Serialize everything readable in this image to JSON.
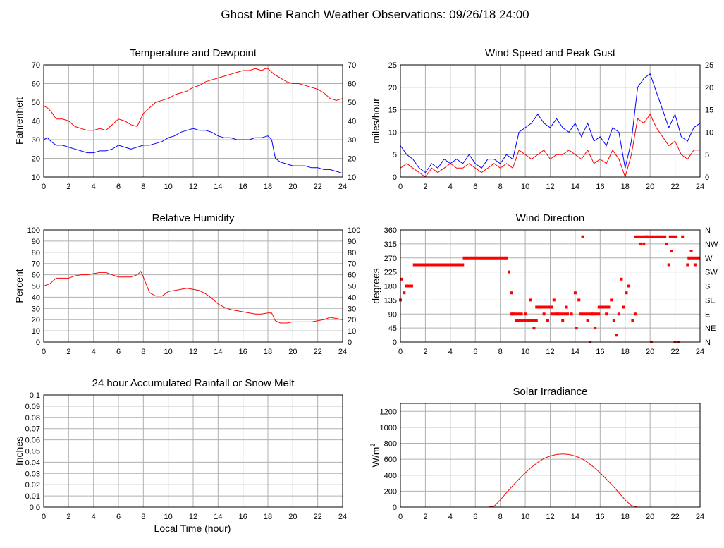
{
  "page": {
    "title": "Ghost Mine Ranch Weather Observations: 09/26/18 24:00",
    "x_axis_label": "Local Time (hour)"
  },
  "colors": {
    "red": "#ff0000",
    "blue": "#0000ff",
    "grid": "#b0b0b0"
  },
  "chart_data": [
    {
      "id": "temp",
      "type": "line",
      "title": "Temperature and Dewpoint",
      "xlabel": "",
      "ylabel": "Fahrenheit",
      "xlim": [
        0,
        24
      ],
      "ylim": [
        10,
        70
      ],
      "xticks": [
        0,
        2,
        4,
        6,
        8,
        10,
        12,
        14,
        16,
        18,
        20,
        22,
        24
      ],
      "yticks": [
        10,
        20,
        30,
        40,
        50,
        60,
        70
      ],
      "right_axis_ticks": [
        10,
        20,
        30,
        40,
        50,
        60,
        70
      ],
      "grid": true,
      "series": [
        {
          "color": "#ff0000",
          "x": [
            0,
            0.3,
            0.6,
            1,
            1.5,
            2,
            2.5,
            3,
            3.5,
            4,
            4.5,
            5,
            5.5,
            6,
            6.5,
            7,
            7.5,
            8,
            8.5,
            9,
            9.5,
            10,
            10.5,
            11,
            11.5,
            12,
            12.5,
            13,
            13.5,
            14,
            14.5,
            15,
            15.5,
            16,
            16.5,
            17,
            17.5,
            17.8,
            18,
            18.5,
            19,
            19.5,
            20,
            20.5,
            21,
            21.5,
            22,
            22.5,
            23,
            23.5,
            24
          ],
          "y": [
            48,
            47,
            45,
            41,
            41,
            40,
            37,
            36,
            35,
            35,
            36,
            35,
            38,
            41,
            40,
            38,
            37,
            44,
            47,
            50,
            51,
            52,
            54,
            55,
            56,
            58,
            59,
            61,
            62,
            63,
            64,
            65,
            66,
            67,
            67,
            68,
            67,
            68,
            68,
            65,
            63,
            61,
            60,
            60,
            59,
            58,
            57,
            55,
            52,
            51,
            52
          ]
        },
        {
          "color": "#0000ff",
          "x": [
            0,
            0.3,
            0.6,
            1,
            1.5,
            2,
            2.5,
            3,
            3.5,
            4,
            4.5,
            5,
            5.5,
            6,
            6.5,
            7,
            7.5,
            8,
            8.5,
            9,
            9.5,
            10,
            10.5,
            11,
            11.5,
            12,
            12.5,
            13,
            13.5,
            14,
            14.5,
            15,
            15.5,
            16,
            16.5,
            17,
            17.5,
            18,
            18.3,
            18.6,
            19,
            19.5,
            20,
            20.5,
            21,
            21.5,
            22,
            22.5,
            23,
            23.5,
            24
          ],
          "y": [
            30,
            31,
            29,
            27,
            27,
            26,
            25,
            24,
            23,
            23,
            24,
            24,
            25,
            27,
            26,
            25,
            26,
            27,
            27,
            28,
            29,
            31,
            32,
            34,
            35,
            36,
            35,
            35,
            34,
            32,
            31,
            31,
            30,
            30,
            30,
            31,
            31,
            32,
            30,
            20,
            18,
            17,
            16,
            16,
            16,
            15,
            15,
            14,
            14,
            13,
            12
          ]
        }
      ]
    },
    {
      "id": "wind",
      "type": "line",
      "title": "Wind Speed and Peak Gust",
      "xlabel": "",
      "ylabel": "miles/hour",
      "xlim": [
        0,
        24
      ],
      "ylim": [
        0,
        25
      ],
      "xticks": [
        0,
        2,
        4,
        6,
        8,
        10,
        12,
        14,
        16,
        18,
        20,
        22,
        24
      ],
      "yticks": [
        0,
        5,
        10,
        15,
        20,
        25
      ],
      "right_axis_ticks": [
        0,
        5,
        10,
        15,
        20,
        25
      ],
      "grid": true,
      "series": [
        {
          "color": "#ff0000",
          "x": [
            0,
            0.5,
            1,
            1.5,
            2,
            2.5,
            3,
            3.5,
            4,
            4.5,
            5,
            5.5,
            6,
            6.5,
            7,
            7.5,
            8,
            8.5,
            9,
            9.5,
            10,
            10.5,
            11,
            11.5,
            12,
            12.5,
            13,
            13.5,
            14,
            14.5,
            15,
            15.5,
            16,
            16.5,
            17,
            17.5,
            18,
            18.5,
            19,
            19.5,
            20,
            20.5,
            21,
            21.5,
            22,
            22.5,
            23,
            23.5,
            24
          ],
          "y": [
            2,
            3,
            2,
            1,
            0,
            2,
            1,
            2,
            3,
            2,
            2,
            3,
            2,
            1,
            2,
            3,
            2,
            3,
            2,
            6,
            5,
            4,
            5,
            6,
            4,
            5,
            5,
            6,
            5,
            4,
            6,
            3,
            4,
            3,
            6,
            4,
            0,
            5,
            13,
            12,
            14,
            11,
            9,
            7,
            8,
            5,
            4,
            6,
            6
          ]
        },
        {
          "color": "#0000ff",
          "x": [
            0,
            0.5,
            1,
            1.5,
            2,
            2.5,
            3,
            3.5,
            4,
            4.5,
            5,
            5.5,
            6,
            6.5,
            7,
            7.5,
            8,
            8.5,
            9,
            9.5,
            10,
            10.5,
            11,
            11.5,
            12,
            12.5,
            13,
            13.5,
            14,
            14.5,
            15,
            15.5,
            16,
            16.5,
            17,
            17.5,
            18,
            18.5,
            19,
            19.5,
            20,
            20.5,
            21,
            21.5,
            22,
            22.5,
            23,
            23.5,
            24
          ],
          "y": [
            7,
            5,
            4,
            2,
            1,
            3,
            2,
            4,
            3,
            4,
            3,
            5,
            3,
            2,
            4,
            4,
            3,
            5,
            4,
            10,
            11,
            12,
            14,
            12,
            11,
            13,
            11,
            10,
            12,
            9,
            12,
            8,
            9,
            7,
            11,
            10,
            2,
            8,
            20,
            22,
            23,
            19,
            15,
            11,
            14,
            9,
            8,
            11,
            12
          ]
        }
      ]
    },
    {
      "id": "rh",
      "type": "line",
      "title": "Relative Humidity",
      "xlabel": "",
      "ylabel": "Percent",
      "xlim": [
        0,
        24
      ],
      "ylim": [
        0,
        100
      ],
      "xticks": [
        0,
        2,
        4,
        6,
        8,
        10,
        12,
        14,
        16,
        18,
        20,
        22,
        24
      ],
      "yticks": [
        0,
        10,
        20,
        30,
        40,
        50,
        60,
        70,
        80,
        90,
        100
      ],
      "right_axis_ticks": [
        0,
        10,
        20,
        30,
        40,
        50,
        60,
        70,
        80,
        90,
        100
      ],
      "grid": true,
      "series": [
        {
          "color": "#ff0000",
          "x": [
            0,
            0.5,
            1,
            1.5,
            2,
            2.5,
            3,
            3.5,
            4,
            4.5,
            5,
            5.5,
            6,
            6.5,
            7,
            7.5,
            7.8,
            8,
            8.5,
            9,
            9.5,
            10,
            10.5,
            11,
            11.5,
            12,
            12.5,
            13,
            13.5,
            14,
            14.5,
            15,
            15.5,
            16,
            16.5,
            17,
            17.5,
            18,
            18.3,
            18.6,
            19,
            19.5,
            20,
            20.5,
            21,
            21.5,
            22,
            22.5,
            23,
            23.5,
            24
          ],
          "y": [
            50,
            52,
            57,
            57,
            57,
            59,
            60,
            60,
            61,
            62,
            62,
            60,
            58,
            58,
            58,
            60,
            63,
            58,
            44,
            41,
            41,
            45,
            46,
            47,
            48,
            47,
            46,
            43,
            39,
            34,
            31,
            29,
            28,
            27,
            26,
            25,
            25,
            26,
            26,
            19,
            17,
            17,
            18,
            18,
            18,
            18,
            19,
            20,
            22,
            21,
            20
          ]
        }
      ]
    },
    {
      "id": "dir",
      "type": "scatter",
      "title": "Wind Direction",
      "xlabel": "",
      "ylabel": "degrees",
      "xlim": [
        0,
        24
      ],
      "ylim": [
        0,
        360
      ],
      "xticks": [
        0,
        2,
        4,
        6,
        8,
        10,
        12,
        14,
        16,
        18,
        20,
        22,
        24
      ],
      "yticks": [
        0,
        45,
        90,
        135,
        180,
        225,
        270,
        315,
        360
      ],
      "right_axis_ticks": [
        "N",
        "NE",
        "E",
        "SE",
        "S",
        "SW",
        "W",
        "NW",
        "N"
      ],
      "grid": true,
      "series": [
        {
          "color": "#ff0000",
          "segments": [
            {
              "x0": 1.0,
              "x1": 5.1,
              "y": 248
            },
            {
              "x0": 5.0,
              "x1": 8.6,
              "y": 270
            },
            {
              "x0": 8.8,
              "x1": 9.8,
              "y": 90
            },
            {
              "x0": 9.2,
              "x1": 11.0,
              "y": 68
            },
            {
              "x0": 10.8,
              "x1": 12.2,
              "y": 112
            },
            {
              "x0": 12.0,
              "x1": 13.5,
              "y": 90
            },
            {
              "x0": 14.3,
              "x1": 16.0,
              "y": 90
            },
            {
              "x0": 15.8,
              "x1": 16.8,
              "y": 112
            },
            {
              "x0": 18.7,
              "x1": 21.3,
              "y": 338
            },
            {
              "x0": 21.5,
              "x1": 22.2,
              "y": 338
            },
            {
              "x0": 23.0,
              "x1": 24.0,
              "y": 270
            }
          ],
          "x": [
            0,
            0.1,
            0.3,
            0.5,
            0.7,
            0.9,
            8.7,
            8.9,
            9.0,
            9.3,
            9.6,
            10.0,
            10.4,
            10.7,
            11.2,
            11.5,
            11.8,
            12.3,
            12.6,
            13.0,
            13.3,
            13.7,
            14.0,
            14.1,
            14.3,
            14.6,
            15.0,
            15.2,
            15.4,
            15.6,
            16.2,
            16.5,
            16.9,
            17.1,
            17.3,
            17.5,
            17.7,
            17.9,
            18.1,
            18.3,
            18.6,
            18.8,
            19.2,
            19.5,
            19.7,
            20.1,
            21.3,
            21.5,
            21.7,
            22.0,
            22.3,
            22.6,
            23.0,
            23.3,
            23.6
          ],
          "y": [
            135,
            202,
            158,
            180,
            180,
            180,
            225,
            158,
            90,
            68,
            68,
            90,
            135,
            45,
            112,
            90,
            68,
            135,
            90,
            68,
            112,
            90,
            158,
            45,
            135,
            338,
            68,
            0,
            90,
            45,
            112,
            90,
            135,
            68,
            22,
            90,
            202,
            112,
            158,
            180,
            68,
            90,
            315,
            315,
            338,
            0,
            315,
            248,
            292,
            0,
            0,
            338,
            248,
            292,
            248
          ]
        }
      ]
    },
    {
      "id": "rain",
      "type": "line",
      "title": "24 hour Accumulated Rainfall or Snow Melt",
      "xlabel": "Local Time (hour)",
      "ylabel": "Inches",
      "xlim": [
        0,
        24
      ],
      "ylim": [
        0,
        0.1
      ],
      "xticks": [
        0,
        2,
        4,
        6,
        8,
        10,
        12,
        14,
        16,
        18,
        20,
        22,
        24
      ],
      "yticks": [
        "0.0",
        "0.01",
        "0.02",
        "0.03",
        "0.04",
        "0.05",
        "0.06",
        "0.07",
        "0.08",
        "0.09",
        "0.1"
      ],
      "grid": true,
      "series": [
        {
          "color": "#ff0000",
          "x": [
            0,
            24
          ],
          "y": [
            0,
            0
          ]
        }
      ]
    },
    {
      "id": "solar",
      "type": "line",
      "title": "Solar Irradiance",
      "xlabel": "",
      "ylabel": "W/m",
      "ylabel_sup": "2",
      "xlim": [
        0,
        24
      ],
      "ylim": [
        0,
        1300
      ],
      "xticks": [
        0,
        2,
        4,
        6,
        8,
        10,
        12,
        14,
        16,
        18,
        20,
        22,
        24
      ],
      "yticks": [
        0,
        200,
        400,
        600,
        800,
        1000,
        1200
      ],
      "grid": true,
      "series": [
        {
          "color": "#ff0000",
          "x": [
            0,
            7.0,
            7.5,
            8.0,
            8.5,
            9.0,
            9.5,
            10.0,
            10.5,
            11.0,
            11.5,
            12.0,
            12.5,
            13.0,
            13.5,
            14.0,
            14.5,
            15.0,
            15.5,
            16.0,
            16.5,
            17.0,
            17.5,
            18.0,
            18.5,
            19.0,
            24
          ],
          "y": [
            0,
            0,
            10,
            90,
            180,
            270,
            350,
            430,
            500,
            560,
            610,
            640,
            660,
            665,
            660,
            640,
            610,
            560,
            500,
            430,
            350,
            270,
            180,
            90,
            20,
            0,
            0
          ]
        }
      ]
    }
  ]
}
